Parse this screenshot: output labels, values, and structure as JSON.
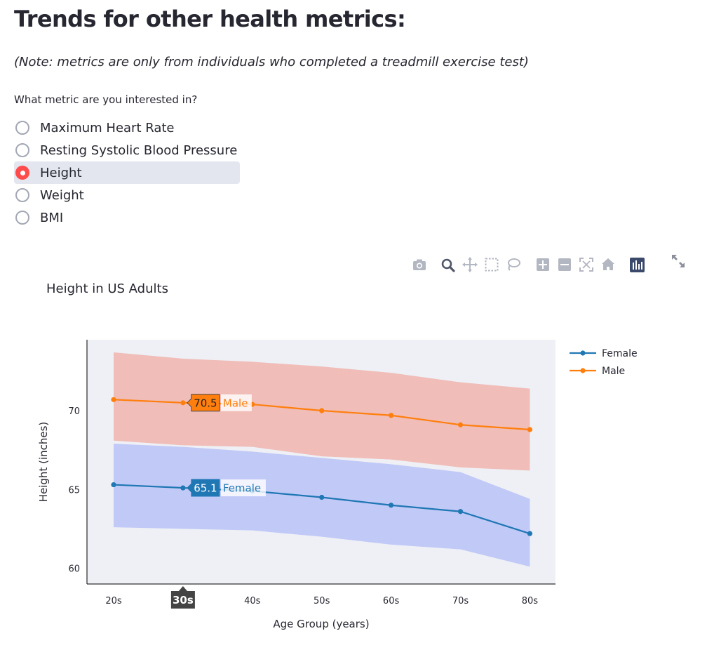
{
  "header": {
    "title": "Trends for other health metrics:",
    "note": "(Note: metrics are only from individuals who completed a treadmill exercise test)"
  },
  "metric_select": {
    "question": "What metric are you interested in?",
    "options": [
      {
        "label": "Maximum Heart Rate",
        "selected": false
      },
      {
        "label": "Resting Systolic Blood Pressure",
        "selected": false
      },
      {
        "label": "Height",
        "selected": true
      },
      {
        "label": "Weight",
        "selected": false
      },
      {
        "label": "BMI",
        "selected": false
      }
    ]
  },
  "modebar": {
    "buttons": [
      "camera-icon",
      "zoom-icon",
      "pan-icon",
      "box-select-icon",
      "lasso-icon",
      "zoom-in-icon",
      "zoom-out-icon",
      "autoscale-icon",
      "reset-axes-icon",
      "plotly-logo-icon"
    ],
    "expand": "expand-icon"
  },
  "chart_data": {
    "type": "line",
    "title": "Height in US Adults",
    "xlabel": "Age Group (years)",
    "ylabel": "Height (inches)",
    "categories": [
      "20s",
      "30s",
      "40s",
      "50s",
      "60s",
      "70s",
      "80s"
    ],
    "yticks": [
      60,
      65,
      70
    ],
    "ylim": [
      59,
      74.5
    ],
    "legend_position": "top-right",
    "grid": false,
    "series": [
      {
        "name": "Female",
        "color": "#1f77b4",
        "band_color": "#bbc3f7",
        "values": [
          65.3,
          65.1,
          64.9,
          64.5,
          64.0,
          63.6,
          62.2
        ],
        "upper": [
          67.9,
          67.7,
          67.4,
          67.0,
          66.6,
          66.1,
          64.4
        ],
        "lower": [
          62.6,
          62.5,
          62.4,
          62.0,
          61.5,
          61.2,
          60.1
        ]
      },
      {
        "name": "Male",
        "color": "#ff7f0e",
        "band_color": "#f0bdb8",
        "values": [
          70.7,
          70.5,
          70.4,
          70.0,
          69.7,
          69.1,
          68.8
        ],
        "upper": [
          73.7,
          73.3,
          73.1,
          72.8,
          72.4,
          71.8,
          71.4
        ],
        "lower": [
          68.1,
          67.8,
          67.7,
          67.1,
          66.9,
          66.4,
          66.2
        ]
      }
    ],
    "hover": {
      "category": "30s",
      "labels": [
        {
          "series": "Male",
          "value": "70.5",
          "name": "Male"
        },
        {
          "series": "Female",
          "value": "65.1",
          "name": "Female"
        }
      ]
    }
  }
}
